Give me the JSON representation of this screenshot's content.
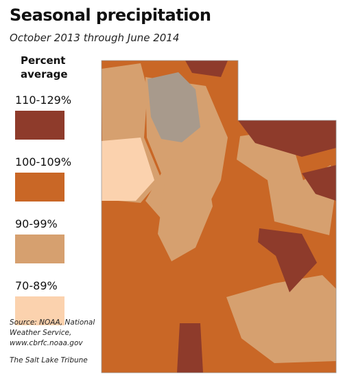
{
  "title": "Seasonal precipitation",
  "subtitle": "October 2013 through June 2014",
  "legend": {
    "title": "Percent average",
    "items": [
      {
        "label": "110-129%",
        "color": "#8e3b2b"
      },
      {
        "label": "100-109%",
        "color": "#c96726"
      },
      {
        "label": "90-99%",
        "color": "#d6a06f"
      },
      {
        "label": "70-89%",
        "color": "#fbd2ae"
      }
    ]
  },
  "source": "Source: NOAA, National Weather Service, www.cbrfc.noaa.gov",
  "credit": "The Salt Lake Tribune"
}
